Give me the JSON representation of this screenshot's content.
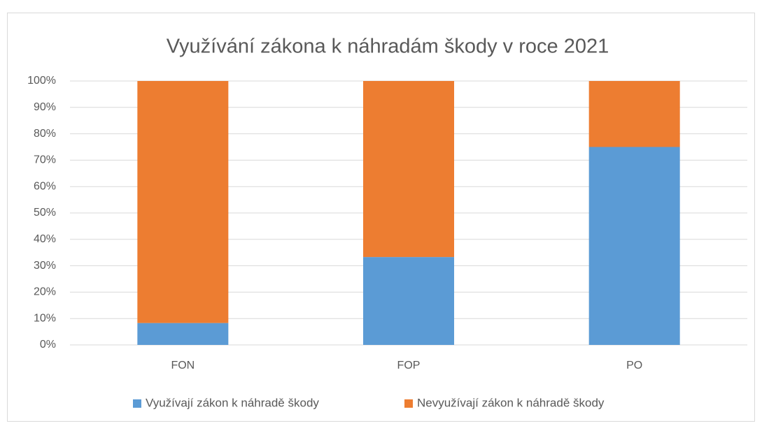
{
  "chart_data": {
    "type": "stacked_bar",
    "title": "Využívání zákona k náhradám škody v roce 2021",
    "categories": [
      "FON",
      "FOP",
      "PO"
    ],
    "series": [
      {
        "name": "Využívají zákon k náhradě škody",
        "color": "#5b9bd5",
        "values": [
          8.3,
          33.3,
          75
        ]
      },
      {
        "name": "Nevyužívají zákon k náhradě škody",
        "color": "#ed7d31",
        "values": [
          91.7,
          66.7,
          25
        ]
      }
    ],
    "ylim": [
      0,
      100
    ],
    "yticks": [
      {
        "value": 0,
        "label": "0%"
      },
      {
        "value": 10,
        "label": "10%"
      },
      {
        "value": 20,
        "label": "20%"
      },
      {
        "value": 30,
        "label": "30%"
      },
      {
        "value": 40,
        "label": "40%"
      },
      {
        "value": 50,
        "label": "50%"
      },
      {
        "value": 60,
        "label": "60%"
      },
      {
        "value": 70,
        "label": "70%"
      },
      {
        "value": 80,
        "label": "80%"
      },
      {
        "value": 90,
        "label": "90%"
      },
      {
        "value": 100,
        "label": "100%"
      }
    ],
    "grid": true,
    "legend": "bottom"
  }
}
